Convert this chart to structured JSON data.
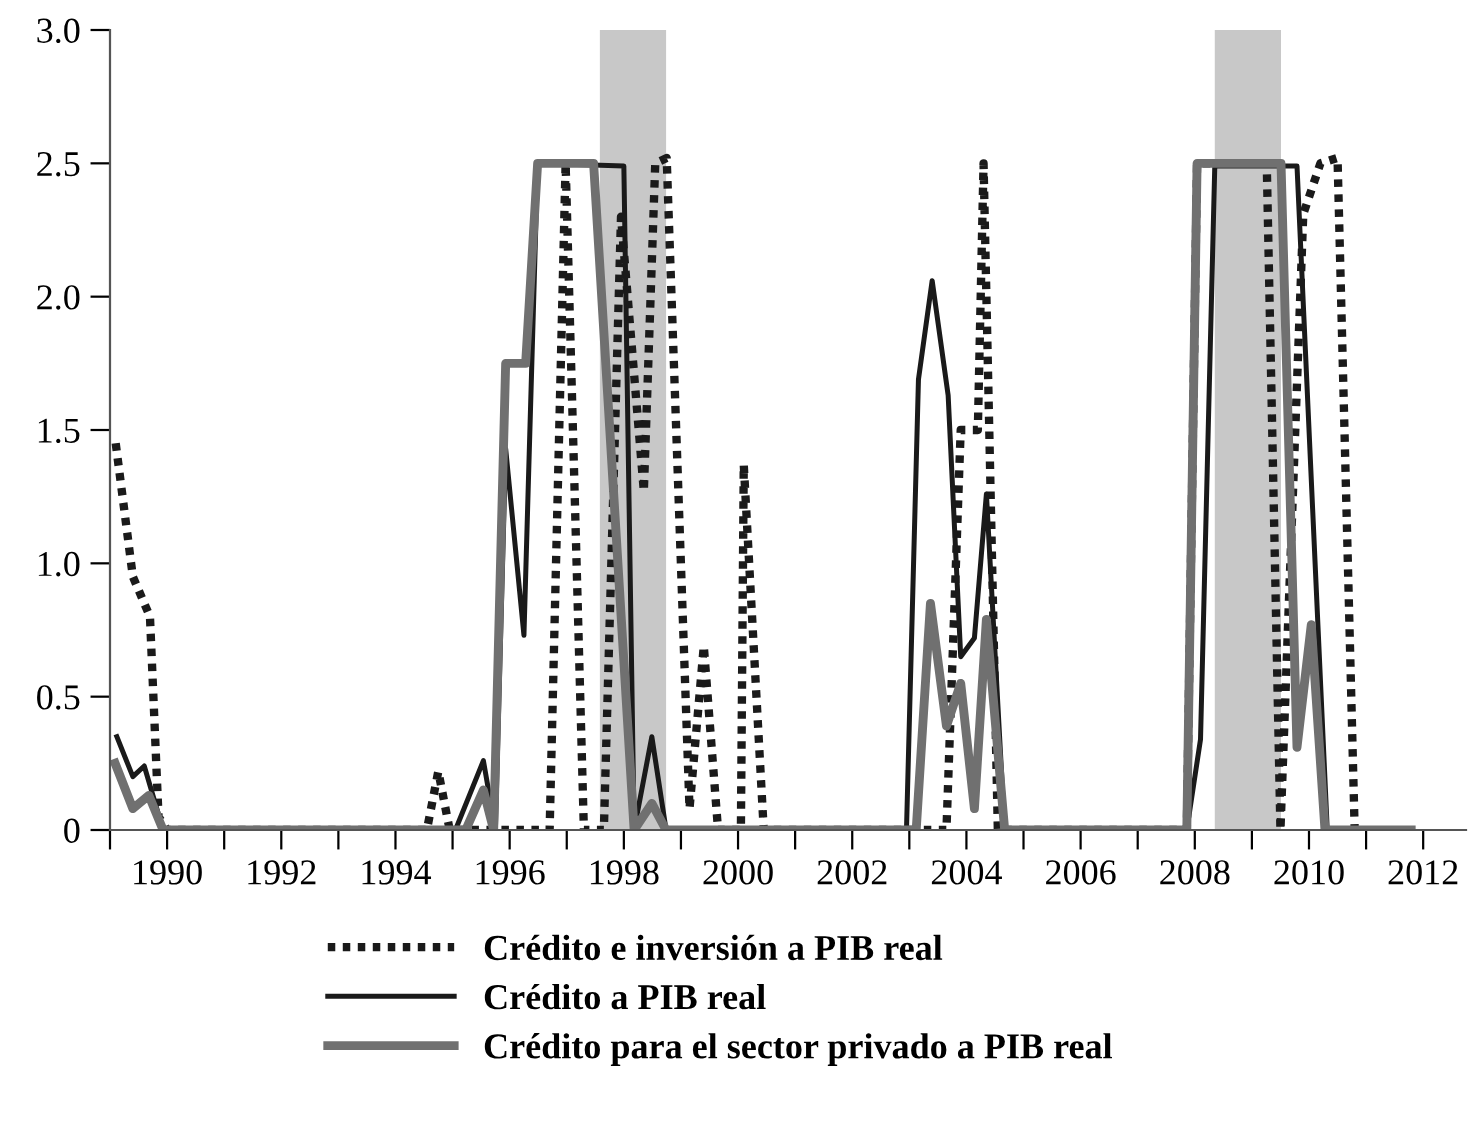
{
  "chart_data": {
    "type": "line",
    "series": [
      {
        "name": "Crédito e inversión a PIB real",
        "color": "#1a1a1a",
        "line_style": "dotted",
        "x": [
          1989.1,
          1989.4,
          1989.7,
          1989.85,
          1990.0,
          1994.55,
          1994.75,
          1994.95,
          1996.7,
          1996.98,
          1997.3,
          1997.65,
          1997.95,
          1998.35,
          1998.55,
          1998.75,
          1999.15,
          1999.4,
          1999.65,
          2000.05,
          2000.1,
          2000.45,
          2003.65,
          2003.9,
          2004.2,
          2004.3,
          2004.55,
          2007.86,
          2008.04,
          2009.26,
          2009.5,
          2009.9,
          2010.2,
          2010.5,
          2010.8
        ],
        "values": [
          1.45,
          0.95,
          0.8,
          0.05,
          0,
          0,
          0.22,
          0,
          0,
          2.5,
          0,
          0,
          2.3,
          1.27,
          2.5,
          2.52,
          0.08,
          0.69,
          0,
          0,
          1.37,
          0,
          0,
          1.5,
          1.5,
          2.5,
          0,
          0,
          2.5,
          2.5,
          0,
          2.31,
          2.5,
          2.52,
          0
        ]
      },
      {
        "name": "Crédito a PIB real",
        "color": "#1a1a1a",
        "line_style": "solid",
        "x": [
          1989.12,
          1989.4,
          1989.6,
          1989.93,
          1995.05,
          1995.54,
          1995.75,
          1995.93,
          1996.25,
          1996.49,
          1998.0,
          1998.18,
          1998.49,
          1998.74,
          2002.95,
          2003.16,
          2003.4,
          2003.68,
          2003.9,
          2004.14,
          2004.35,
          2004.67,
          2007.86,
          2008.1,
          2008.35,
          2009.79,
          2010.32,
          2011.79
        ],
        "values": [
          0.35,
          0.2,
          0.24,
          0,
          0,
          0.26,
          0,
          1.43,
          0.73,
          2.5,
          2.49,
          0,
          0.35,
          0,
          0,
          1.69,
          2.06,
          1.63,
          0.65,
          0.72,
          1.26,
          0,
          0,
          0.34,
          2.49,
          2.49,
          0,
          0
        ]
      },
      {
        "name": "Crédito para el sector privado a PIB real",
        "color": "#707070",
        "line_style": "solid",
        "x": [
          1989.09,
          1989.4,
          1989.68,
          1989.93,
          1995.23,
          1995.54,
          1995.72,
          1995.93,
          1996.28,
          1996.49,
          1997.47,
          1998.18,
          1998.49,
          1998.74,
          2003.12,
          2003.37,
          2003.65,
          2003.9,
          2004.14,
          2004.35,
          2004.67,
          2007.86,
          2008.04,
          2009.51,
          2009.79,
          2010.04,
          2010.28,
          2011.79
        ],
        "values": [
          0.25,
          0.08,
          0.13,
          0,
          0,
          0.15,
          0,
          1.75,
          1.75,
          2.5,
          2.5,
          0,
          0.1,
          0,
          0,
          0.85,
          0.39,
          0.55,
          0.08,
          0.79,
          0,
          0,
          2.5,
          2.5,
          0.31,
          0.77,
          0,
          0
        ]
      }
    ],
    "bands": [
      {
        "axis": "x",
        "from": 1997.58,
        "to": 1998.74,
        "color": "#c8c8c8"
      },
      {
        "axis": "x",
        "from": 2008.35,
        "to": 2009.51,
        "color": "#c8c8c8"
      }
    ],
    "xlim": [
      1989,
      2012.75
    ],
    "xticks": [
      {
        "value": 1989,
        "label": null
      },
      1990,
      {
        "value": 1991,
        "label": null
      },
      1992,
      {
        "value": 1993,
        "label": null
      },
      1994,
      {
        "value": 1995,
        "label": null
      },
      1996,
      {
        "value": 1997,
        "label": null
      },
      1998,
      {
        "value": 1999,
        "label": null
      },
      2000,
      {
        "value": 2001,
        "label": null
      },
      2002,
      {
        "value": 2003,
        "label": null
      },
      2004,
      {
        "value": 2005,
        "label": null
      },
      2006,
      {
        "value": 2007,
        "label": null
      },
      2008,
      {
        "value": 2009,
        "label": null
      },
      2010,
      {
        "value": 2011,
        "label": null
      },
      2012
    ],
    "ylim": [
      0,
      3.0
    ],
    "yticks": [
      0,
      {
        "value": 0.5,
        "label": "0.5"
      },
      {
        "value": 1.0,
        "label": "1.0"
      },
      {
        "value": 1.5,
        "label": "1.5"
      },
      {
        "value": 2.0,
        "label": "2.0"
      },
      {
        "value": 2.5,
        "label": "2.5"
      },
      {
        "value": 3.0,
        "label": "3.0"
      }
    ],
    "grid": false,
    "legend": "bottom",
    "marker": "none"
  }
}
